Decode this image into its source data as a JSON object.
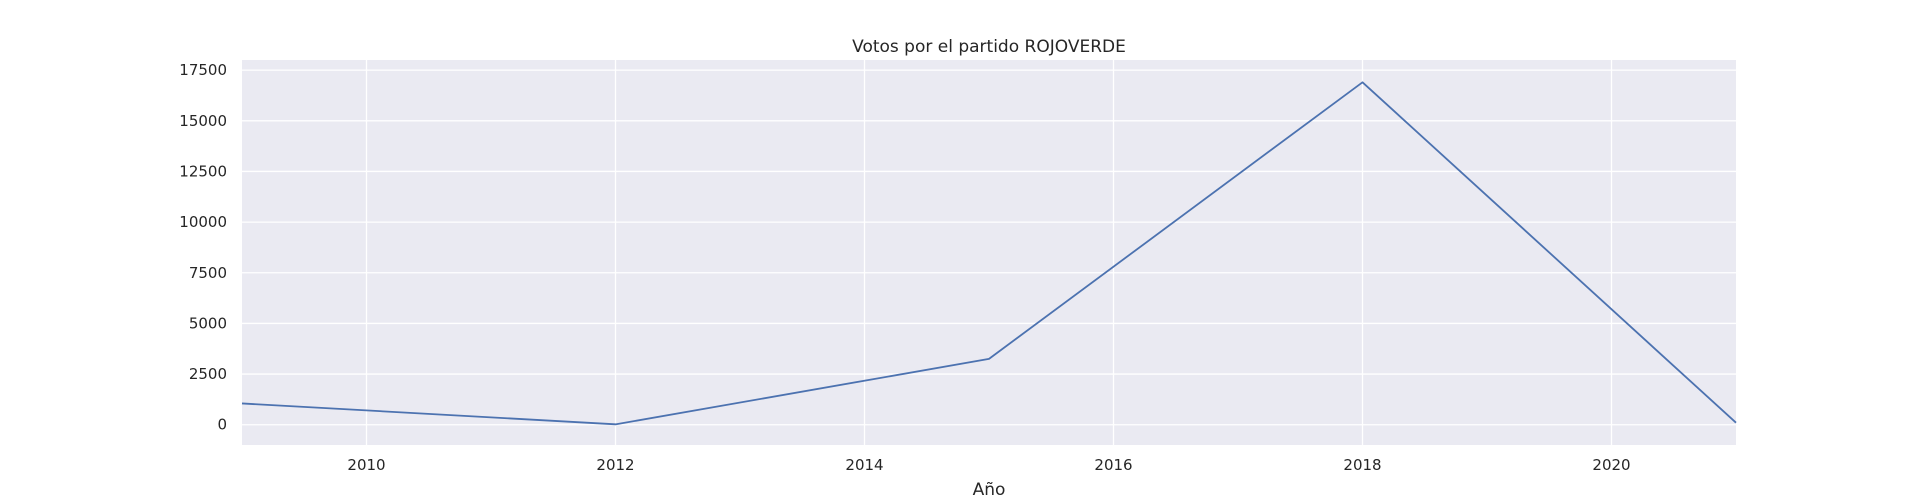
{
  "chart_data": {
    "type": "line",
    "title": "Votos por el partido ROJOVERDE",
    "xlabel": "Año",
    "ylabel": "",
    "x": [
      2009,
      2012,
      2015,
      2018,
      2021
    ],
    "series": [
      {
        "values": [
          1050,
          20,
          3250,
          16900,
          100
        ],
        "color": "#4c72b0"
      }
    ],
    "xlim": [
      2009,
      2021
    ],
    "ylim": [
      -1000,
      18000
    ],
    "xticks": [
      2010,
      2012,
      2014,
      2016,
      2018,
      2020
    ],
    "yticks": [
      0,
      2500,
      5000,
      7500,
      10000,
      12500,
      15000,
      17500
    ],
    "grid": true,
    "plot_background": "#eaeaf2",
    "grid_color": "#ffffff"
  }
}
